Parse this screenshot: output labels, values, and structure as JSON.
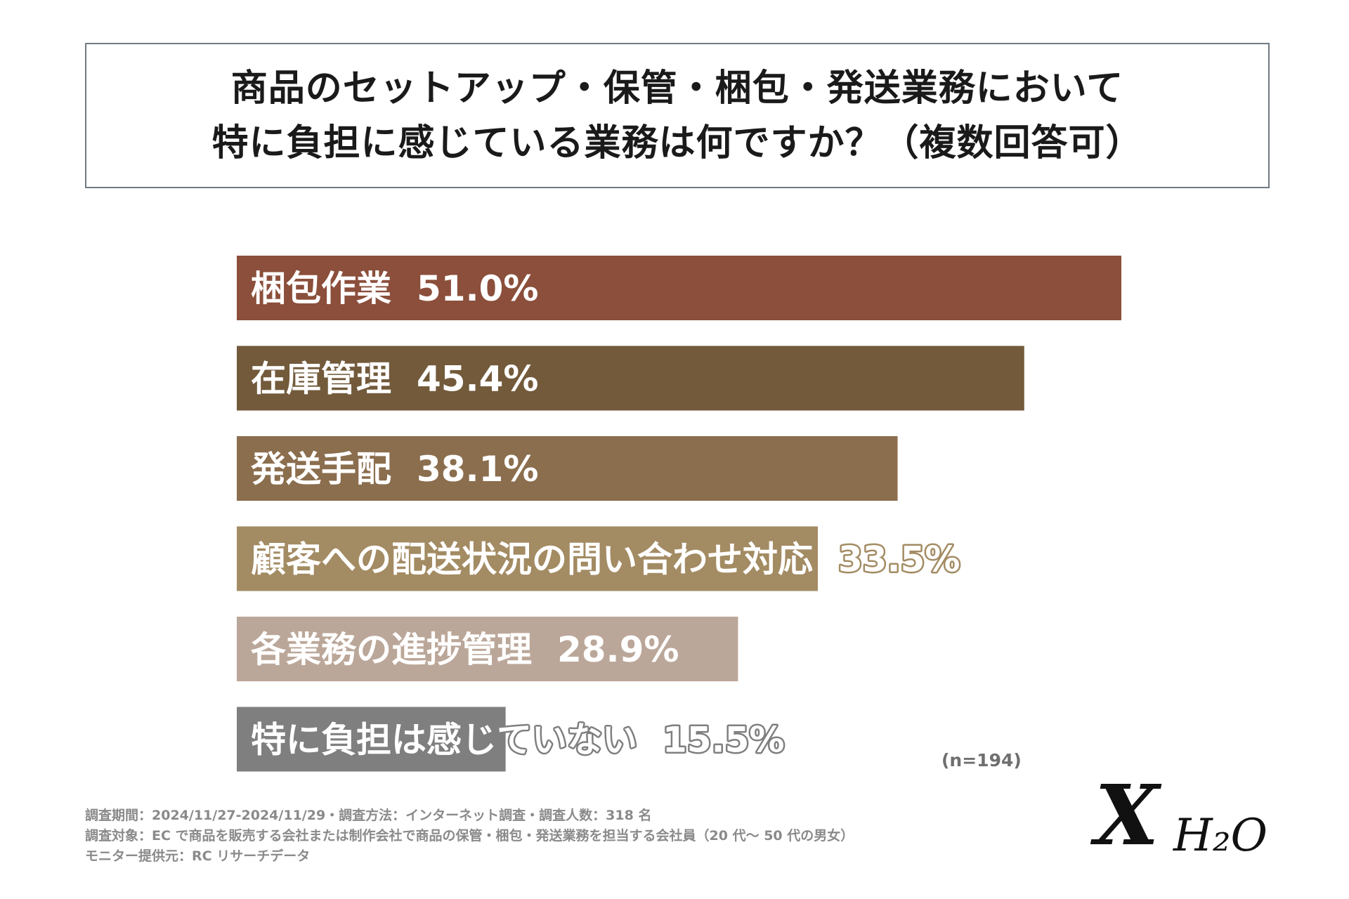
{
  "title": {
    "line1": "商品のセットアップ・保管・梱包・発送業務において",
    "line2": "特に負担に感じている業務は何ですか？（複数回答可）"
  },
  "chart_data": {
    "type": "bar",
    "orientation": "horizontal",
    "title": "商品のセットアップ・保管・梱包・発送業務において特に負担に感じている業務は何ですか？（複数回答可）",
    "categories": [
      "梱包作業",
      "在庫管理",
      "発送手配",
      "顧客への配送状況の問い合わせ対応",
      "各業務の進捗管理",
      "特に負担は感じていない"
    ],
    "values": [
      51.0,
      45.4,
      38.1,
      33.5,
      28.9,
      15.5
    ],
    "value_labels": [
      "51.0%",
      "45.4%",
      "38.1%",
      "33.5%",
      "28.9%",
      "15.5%"
    ],
    "colors": [
      "#8b4f3b",
      "#725a3b",
      "#8b6e4e",
      "#a38b63",
      "#bba799",
      "#7f7f7f"
    ],
    "grid": false,
    "legend": "none"
  },
  "sample_note": "(n=194)",
  "footnotes": [
    "調査期間：2024/11/27-2024/11/29・調査方法：インターネット調査・調査人数：318 名",
    "調査対象：EC で商品を販売する会社または制作会社で商品の保管・梱包・発送業務を担当する会社員（20 代～ 50 代の男女）",
    "モニター提供元：RC リサーチデータ"
  ],
  "logo": {
    "mark": "X",
    "text": "H₂O"
  }
}
